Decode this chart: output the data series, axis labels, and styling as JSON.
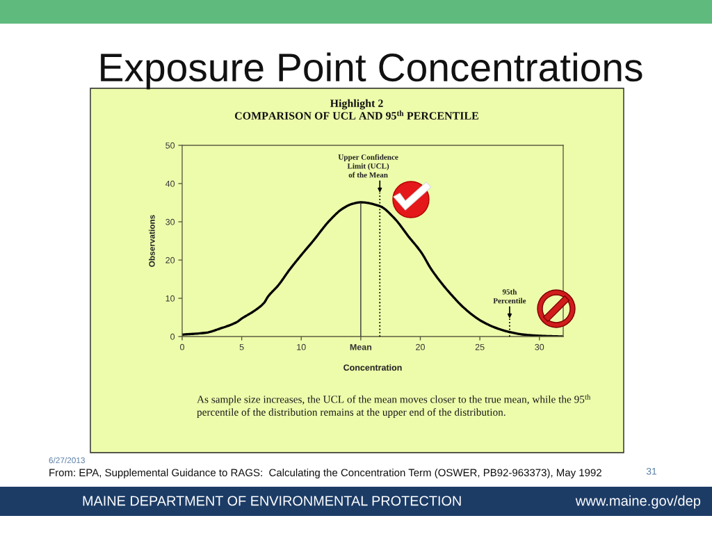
{
  "chart_data": {
    "type": "line",
    "title": "Exposure Point Concentrations",
    "subtitle": "Highlight 2\nCOMPARISON OF UCL AND 95$^{th}$ PERCENTILE",
    "xlabel": "Concentration",
    "ylabel": "Observations",
    "x": [
      0,
      2.0,
      3.2,
      4.6,
      5.0,
      6.1,
      6.9,
      7.2,
      8.1,
      9.0,
      10.0,
      11.0,
      12.4,
      13.5,
      14.3,
      15.0,
      16.6,
      17.8,
      19.0,
      20.1,
      20.9,
      21.9,
      22.5,
      23.7,
      25.1,
      26.4,
      27.6,
      28.7,
      30.0,
      32.0
    ],
    "series": [
      {
        "color": "#000000",
        "values": [
          0.5,
          1.0,
          2.1,
          3.8,
          4.7,
          6.8,
          8.9,
          10.4,
          13.5,
          17.4,
          21.3,
          25.0,
          30.4,
          33.5,
          34.7,
          35.1,
          34.1,
          31.0,
          26.2,
          21.9,
          17.7,
          13.5,
          11.3,
          7.4,
          4.1,
          2.2,
          1.1,
          0.5,
          0.2,
          0
        ]
      }
    ],
    "xlim": [
      0,
      32
    ],
    "xticks": [
      0,
      5,
      10,
      {
        "value": 15,
        "label": "Mean"
      },
      20,
      25,
      30
    ],
    "ylim": [
      0,
      50
    ],
    "yticks": [
      0,
      10,
      20,
      30,
      40,
      50
    ],
    "ref_lines": [
      {
        "axis": "x",
        "value": 15,
        "color": "#333333",
        "line_style": "solid"
      },
      {
        "axis": "x",
        "value": 16.6,
        "label": "Upper Confidence\nLimit (UCL)\nof the Mean",
        "color": "#000000",
        "line_style": "dotted"
      },
      {
        "axis": "x",
        "value": 27.5,
        "label": "95th\nPercentile",
        "color": "#000000",
        "line_style": "dotted"
      }
    ],
    "annotations": [
      "As sample size increases, the UCL of the mean moves closer to the true mean, while the 95$^{th}$\npercentile of the distribution remains at the upper end of the distribution.",
      "From: EPA, Supplemental Guidance to RAGS:  Calculating the Concentration Term (OSWER, PB92-963373), May 1992",
      "6/27/2013",
      "31",
      "MAINE DEPARTMENT OF ENVIRONMENTAL PROTECTION",
      "www.maine.gov/dep"
    ]
  }
}
